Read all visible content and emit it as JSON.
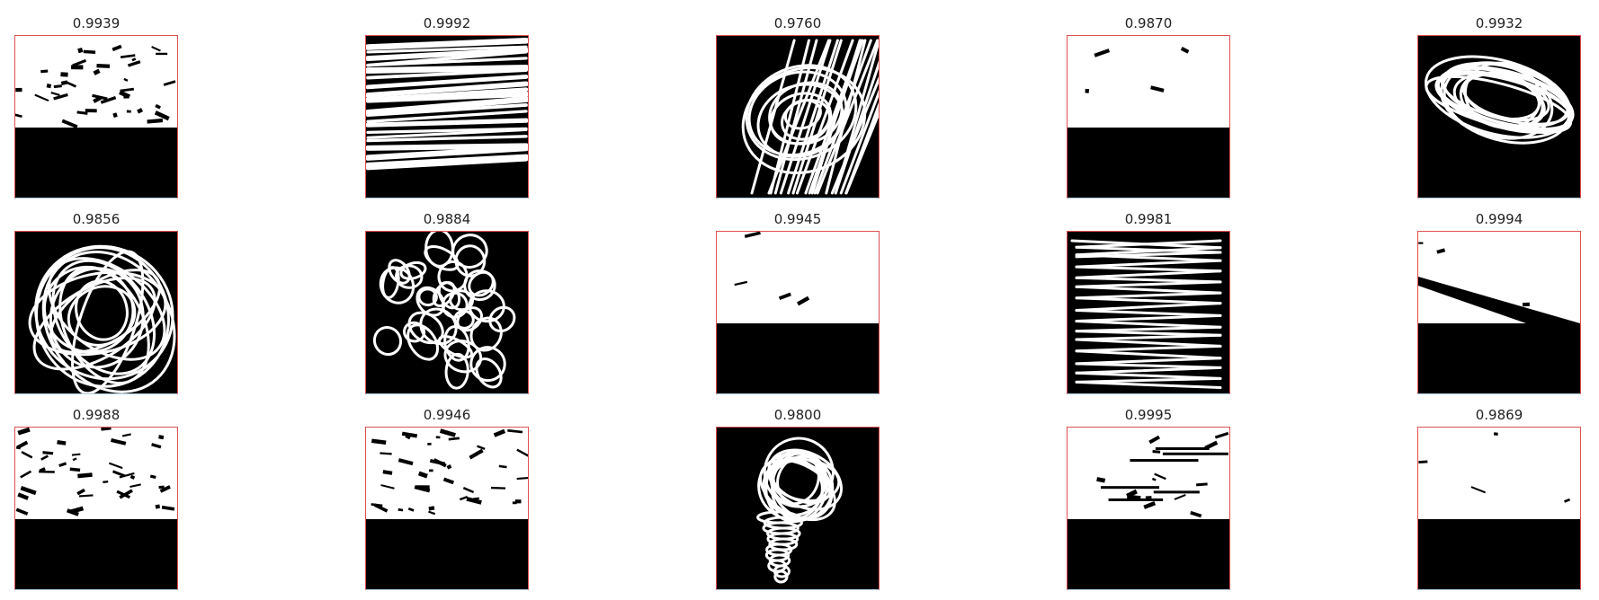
{
  "mask_colors": {
    "fill": "#ffffff",
    "background": "#000000",
    "frame": "#e05050"
  },
  "panels": [
    {
      "score": "0.9939",
      "pattern": "fill-top-dense"
    },
    {
      "score": "0.9992",
      "pattern": "horizontal-strokes"
    },
    {
      "score": "0.9760",
      "pattern": "scribble-diagonal"
    },
    {
      "score": "0.9870",
      "pattern": "fill-top-solid"
    },
    {
      "score": "0.9932",
      "pattern": "scribble-oval"
    },
    {
      "score": "0.9856",
      "pattern": "scribble-loops-large"
    },
    {
      "score": "0.9884",
      "pattern": "scribble-loops-small"
    },
    {
      "score": "0.9945",
      "pattern": "fill-top-solid"
    },
    {
      "score": "0.9981",
      "pattern": "zigzag-horizontal"
    },
    {
      "score": "0.9994",
      "pattern": "fill-top-diagonal"
    },
    {
      "score": "0.9988",
      "pattern": "fill-top-dense"
    },
    {
      "score": "0.9946",
      "pattern": "fill-top-dense"
    },
    {
      "score": "0.9800",
      "pattern": "scribble-cone"
    },
    {
      "score": "0.9995",
      "pattern": "fill-top-strokes"
    },
    {
      "score": "0.9869",
      "pattern": "fill-top-solid"
    }
  ]
}
